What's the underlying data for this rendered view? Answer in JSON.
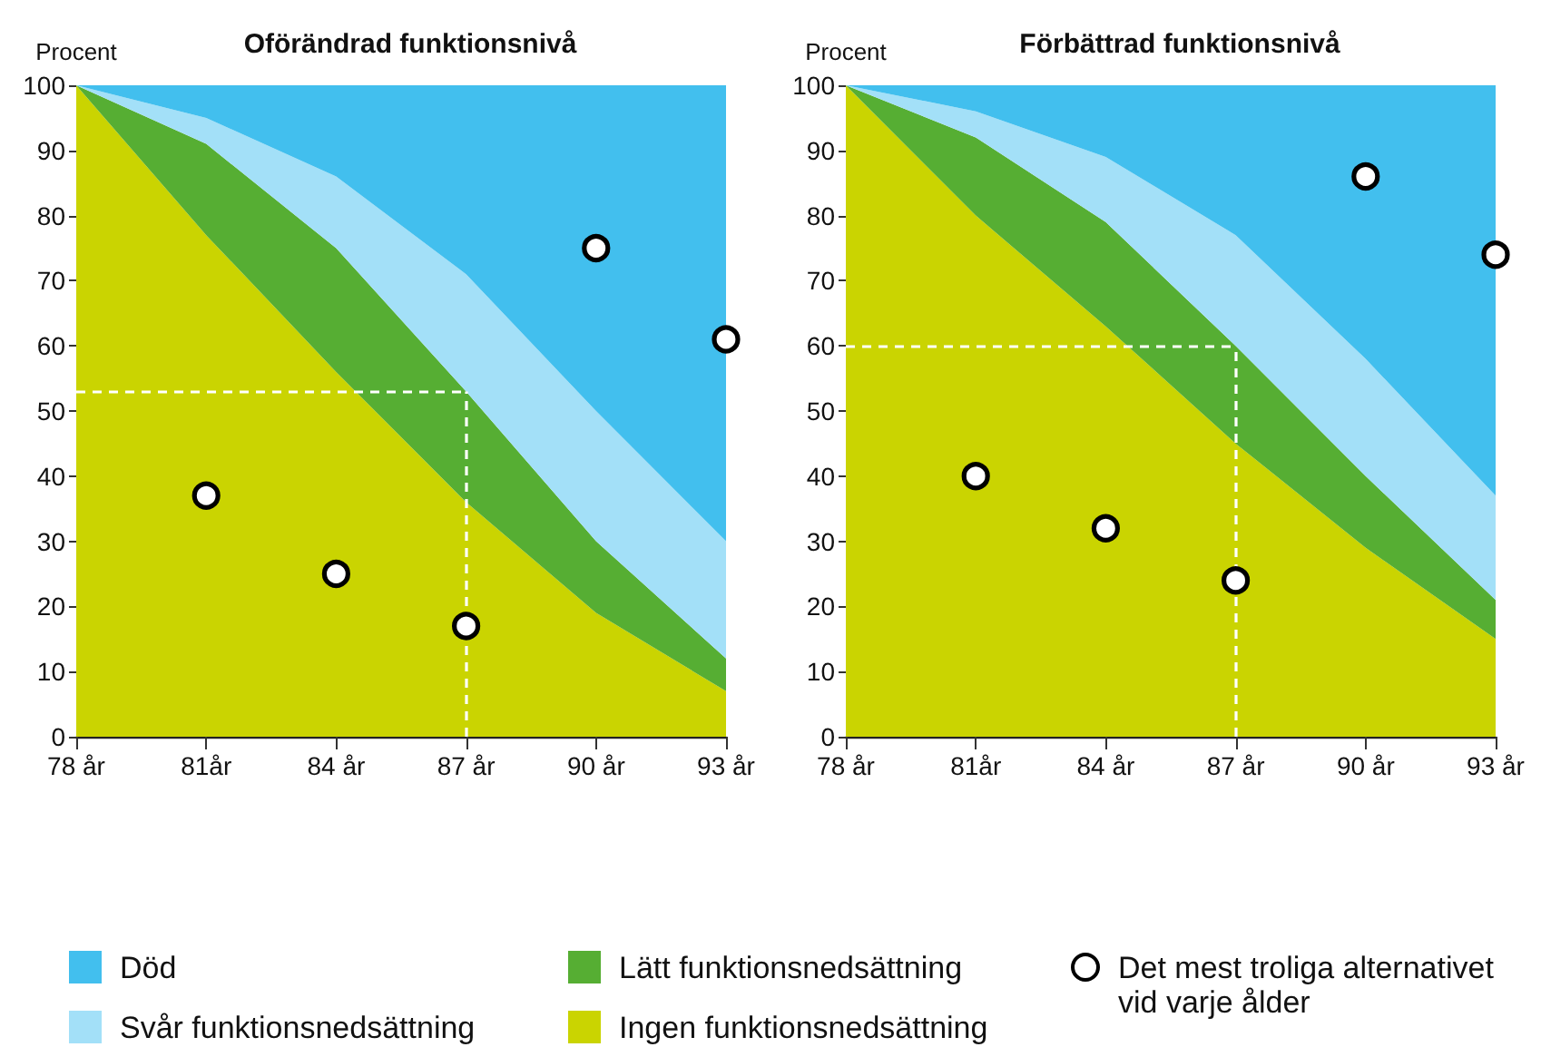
{
  "chart_data": [
    {
      "type": "area",
      "title": "Oförändrad funktionsnivå",
      "ylabel": "Procent",
      "stacked": true,
      "x": [
        78,
        81,
        84,
        87,
        90,
        93
      ],
      "series": [
        {
          "name": "Ingen funktionsnedsättning",
          "color": "#cad401",
          "values": [
            100,
            77,
            56,
            36,
            19,
            7
          ]
        },
        {
          "name": "Lätt funktionsnedsättning",
          "color": "#56ae33",
          "values": [
            0,
            14,
            19,
            17,
            11,
            5
          ]
        },
        {
          "name": "Svår funktionsnedsättning",
          "color": "#a3e0f8",
          "values": [
            0,
            4,
            11,
            18,
            20,
            18
          ]
        },
        {
          "name": "Död",
          "color": "#42bfee",
          "values": [
            0,
            5,
            14,
            29,
            50,
            70
          ]
        },
        {
          "name": "Det mest troliga alternativet vid varje ålder",
          "type": "scatter",
          "color": "#ffffff",
          "x": [
            81,
            84,
            87,
            90,
            93
          ],
          "values": [
            37,
            25,
            17,
            75,
            61
          ]
        }
      ],
      "ref_lines": [
        {
          "axis": "y",
          "value": 53,
          "color": "#ffffff",
          "line_style": "dashed"
        },
        {
          "axis": "x",
          "value": 87,
          "color": "#ffffff",
          "line_style": "dashed"
        }
      ],
      "xlim": [
        78,
        93
      ],
      "xticks": [
        {
          "value": 78,
          "label": "78 år"
        },
        {
          "value": 81,
          "label": "81år"
        },
        {
          "value": 84,
          "label": "84 år"
        },
        {
          "value": 87,
          "label": "87 år"
        },
        {
          "value": 90,
          "label": "90 år"
        },
        {
          "value": 93,
          "label": "93 år"
        }
      ],
      "ylim": [
        0,
        100
      ],
      "yticks": [
        0,
        10,
        20,
        30,
        40,
        50,
        60,
        70,
        80,
        90,
        100
      ],
      "legend": "bottom"
    },
    {
      "type": "area",
      "title": "Förbättrad funktionsnivå",
      "ylabel": "Procent",
      "stacked": true,
      "x": [
        78,
        81,
        84,
        87,
        90,
        93
      ],
      "series": [
        {
          "name": "Ingen funktionsnedsättning",
          "color": "#cad401",
          "values": [
            100,
            80,
            63,
            45,
            29,
            15
          ]
        },
        {
          "name": "Lätt funktionsnedsättning",
          "color": "#56ae33",
          "values": [
            0,
            12,
            16,
            15,
            11,
            6
          ]
        },
        {
          "name": "Svår funktionsnedsättning",
          "color": "#a3e0f8",
          "values": [
            0,
            4,
            10,
            17,
            18,
            16
          ]
        },
        {
          "name": "Död",
          "color": "#42bfee",
          "values": [
            0,
            4,
            11,
            23,
            42,
            63
          ]
        },
        {
          "name": "Det mest troliga alternativet vid varje ålder",
          "type": "scatter",
          "color": "#ffffff",
          "x": [
            81,
            84,
            87,
            90,
            93
          ],
          "values": [
            40,
            32,
            24,
            86,
            74
          ]
        }
      ],
      "ref_lines": [
        {
          "axis": "y",
          "value": 60,
          "color": "#ffffff",
          "line_style": "dashed"
        },
        {
          "axis": "x",
          "value": 87,
          "color": "#ffffff",
          "line_style": "dashed"
        }
      ],
      "xlim": [
        78,
        93
      ],
      "xticks": [
        {
          "value": 78,
          "label": "78 år"
        },
        {
          "value": 81,
          "label": "81år"
        },
        {
          "value": 84,
          "label": "84 år"
        },
        {
          "value": 87,
          "label": "87 år"
        },
        {
          "value": 90,
          "label": "90 år"
        },
        {
          "value": 93,
          "label": "93 år"
        }
      ],
      "ylim": [
        0,
        100
      ],
      "yticks": [
        0,
        10,
        20,
        30,
        40,
        50,
        60,
        70,
        80,
        90,
        100
      ],
      "legend": "bottom"
    }
  ]
}
